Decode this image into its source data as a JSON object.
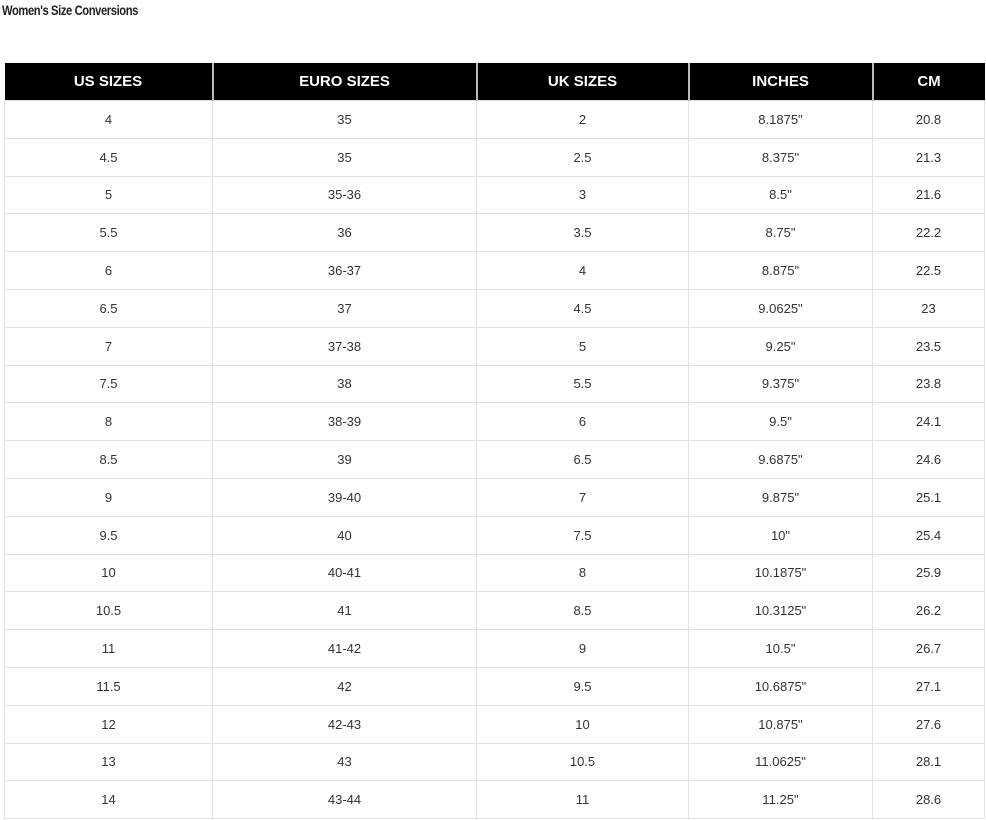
{
  "title": "Women's Size Conversions",
  "columns": [
    "US SIZES",
    "EURO SIZES",
    "UK SIZES",
    "INCHES",
    "CM"
  ],
  "rows": [
    [
      "4",
      "35",
      "2",
      "8.1875\"",
      "20.8"
    ],
    [
      "4.5",
      "35",
      "2.5",
      "8.375\"",
      "21.3"
    ],
    [
      "5",
      "35-36",
      "3",
      "8.5\"",
      "21.6"
    ],
    [
      "5.5",
      "36",
      "3.5",
      "8.75\"",
      "22.2"
    ],
    [
      "6",
      "36-37",
      "4",
      "8.875\"",
      "22.5"
    ],
    [
      "6.5",
      "37",
      "4.5",
      "9.0625\"",
      "23"
    ],
    [
      "7",
      "37-38",
      "5",
      "9.25\"",
      "23.5"
    ],
    [
      "7.5",
      "38",
      "5.5",
      "9.375\"",
      "23.8"
    ],
    [
      "8",
      "38-39",
      "6",
      "9.5\"",
      "24.1"
    ],
    [
      "8.5",
      "39",
      "6.5",
      "9.6875\"",
      "24.6"
    ],
    [
      "9",
      "39-40",
      "7",
      "9.875\"",
      "25.1"
    ],
    [
      "9.5",
      "40",
      "7.5",
      "10\"",
      "25.4"
    ],
    [
      "10",
      "40-41",
      "8",
      "10.1875\"",
      "25.9"
    ],
    [
      "10.5",
      "41",
      "8.5",
      "10.3125\"",
      "26.2"
    ],
    [
      "11",
      "41-42",
      "9",
      "10.5\"",
      "26.7"
    ],
    [
      "11.5",
      "42",
      "9.5",
      "10.6875\"",
      "27.1"
    ],
    [
      "12",
      "42-43",
      "10",
      "10.875\"",
      "27.6"
    ],
    [
      "13",
      "43",
      "10.5",
      "11.0625\"",
      "28.1"
    ],
    [
      "14",
      "43-44",
      "11",
      "11.25\"",
      "28.6"
    ]
  ]
}
